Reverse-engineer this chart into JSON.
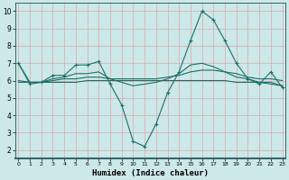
{
  "xlabel": "Humidex (Indice chaleur)",
  "bg_color": "#cce8e8",
  "plot_bg_color": "#cce8e8",
  "grid_color": "#d8a8a8",
  "line_color": "#1a7068",
  "xlim": [
    0,
    23
  ],
  "ylim": [
    1.5,
    10.5
  ],
  "yticks": [
    2,
    3,
    4,
    5,
    6,
    7,
    8,
    9,
    10
  ],
  "xticks": [
    0,
    1,
    2,
    3,
    4,
    5,
    6,
    7,
    8,
    9,
    10,
    11,
    12,
    13,
    14,
    15,
    16,
    17,
    18,
    19,
    20,
    21,
    22,
    23
  ],
  "line1_x": [
    0,
    1,
    2,
    3,
    4,
    5,
    6,
    7,
    8,
    9,
    10,
    11,
    12,
    13,
    14,
    15,
    16,
    17,
    18,
    19,
    20,
    21,
    22,
    23
  ],
  "line1_y": [
    7.0,
    5.8,
    5.9,
    6.3,
    6.3,
    6.9,
    6.9,
    7.1,
    5.8,
    4.6,
    2.5,
    2.2,
    3.5,
    5.3,
    6.5,
    8.3,
    10.0,
    9.5,
    8.3,
    7.0,
    6.1,
    5.8,
    6.5,
    5.6
  ],
  "line2_x": [
    0,
    1,
    2,
    3,
    4,
    5,
    6,
    7,
    8,
    9,
    10,
    11,
    12,
    13,
    14,
    15,
    16,
    17,
    18,
    19,
    20,
    21,
    22,
    23
  ],
  "line2_y": [
    6.0,
    5.9,
    5.9,
    5.9,
    5.9,
    5.9,
    6.0,
    6.0,
    6.0,
    6.0,
    6.0,
    6.0,
    6.0,
    6.0,
    6.0,
    6.0,
    6.0,
    6.0,
    6.0,
    5.9,
    5.9,
    5.9,
    5.8,
    5.7
  ],
  "line3_x": [
    0,
    1,
    2,
    3,
    4,
    5,
    6,
    7,
    8,
    9,
    10,
    11,
    12,
    13,
    14,
    15,
    16,
    17,
    18,
    19,
    20,
    21,
    22,
    23
  ],
  "line3_y": [
    5.9,
    5.9,
    5.9,
    6.0,
    6.1,
    6.1,
    6.2,
    6.2,
    6.1,
    6.1,
    6.1,
    6.1,
    6.1,
    6.2,
    6.3,
    6.5,
    6.6,
    6.6,
    6.5,
    6.4,
    6.2,
    6.1,
    6.1,
    6.0
  ],
  "line4_x": [
    0,
    1,
    2,
    3,
    4,
    5,
    6,
    7,
    8,
    9,
    10,
    11,
    12,
    13,
    14,
    15,
    16,
    17,
    18,
    19,
    20,
    21,
    22,
    23
  ],
  "line4_y": [
    7.0,
    5.9,
    5.9,
    6.1,
    6.2,
    6.4,
    6.4,
    6.5,
    6.1,
    5.9,
    5.7,
    5.8,
    5.9,
    6.1,
    6.4,
    6.9,
    7.0,
    6.8,
    6.5,
    6.2,
    6.1,
    5.9,
    5.9,
    5.7
  ]
}
